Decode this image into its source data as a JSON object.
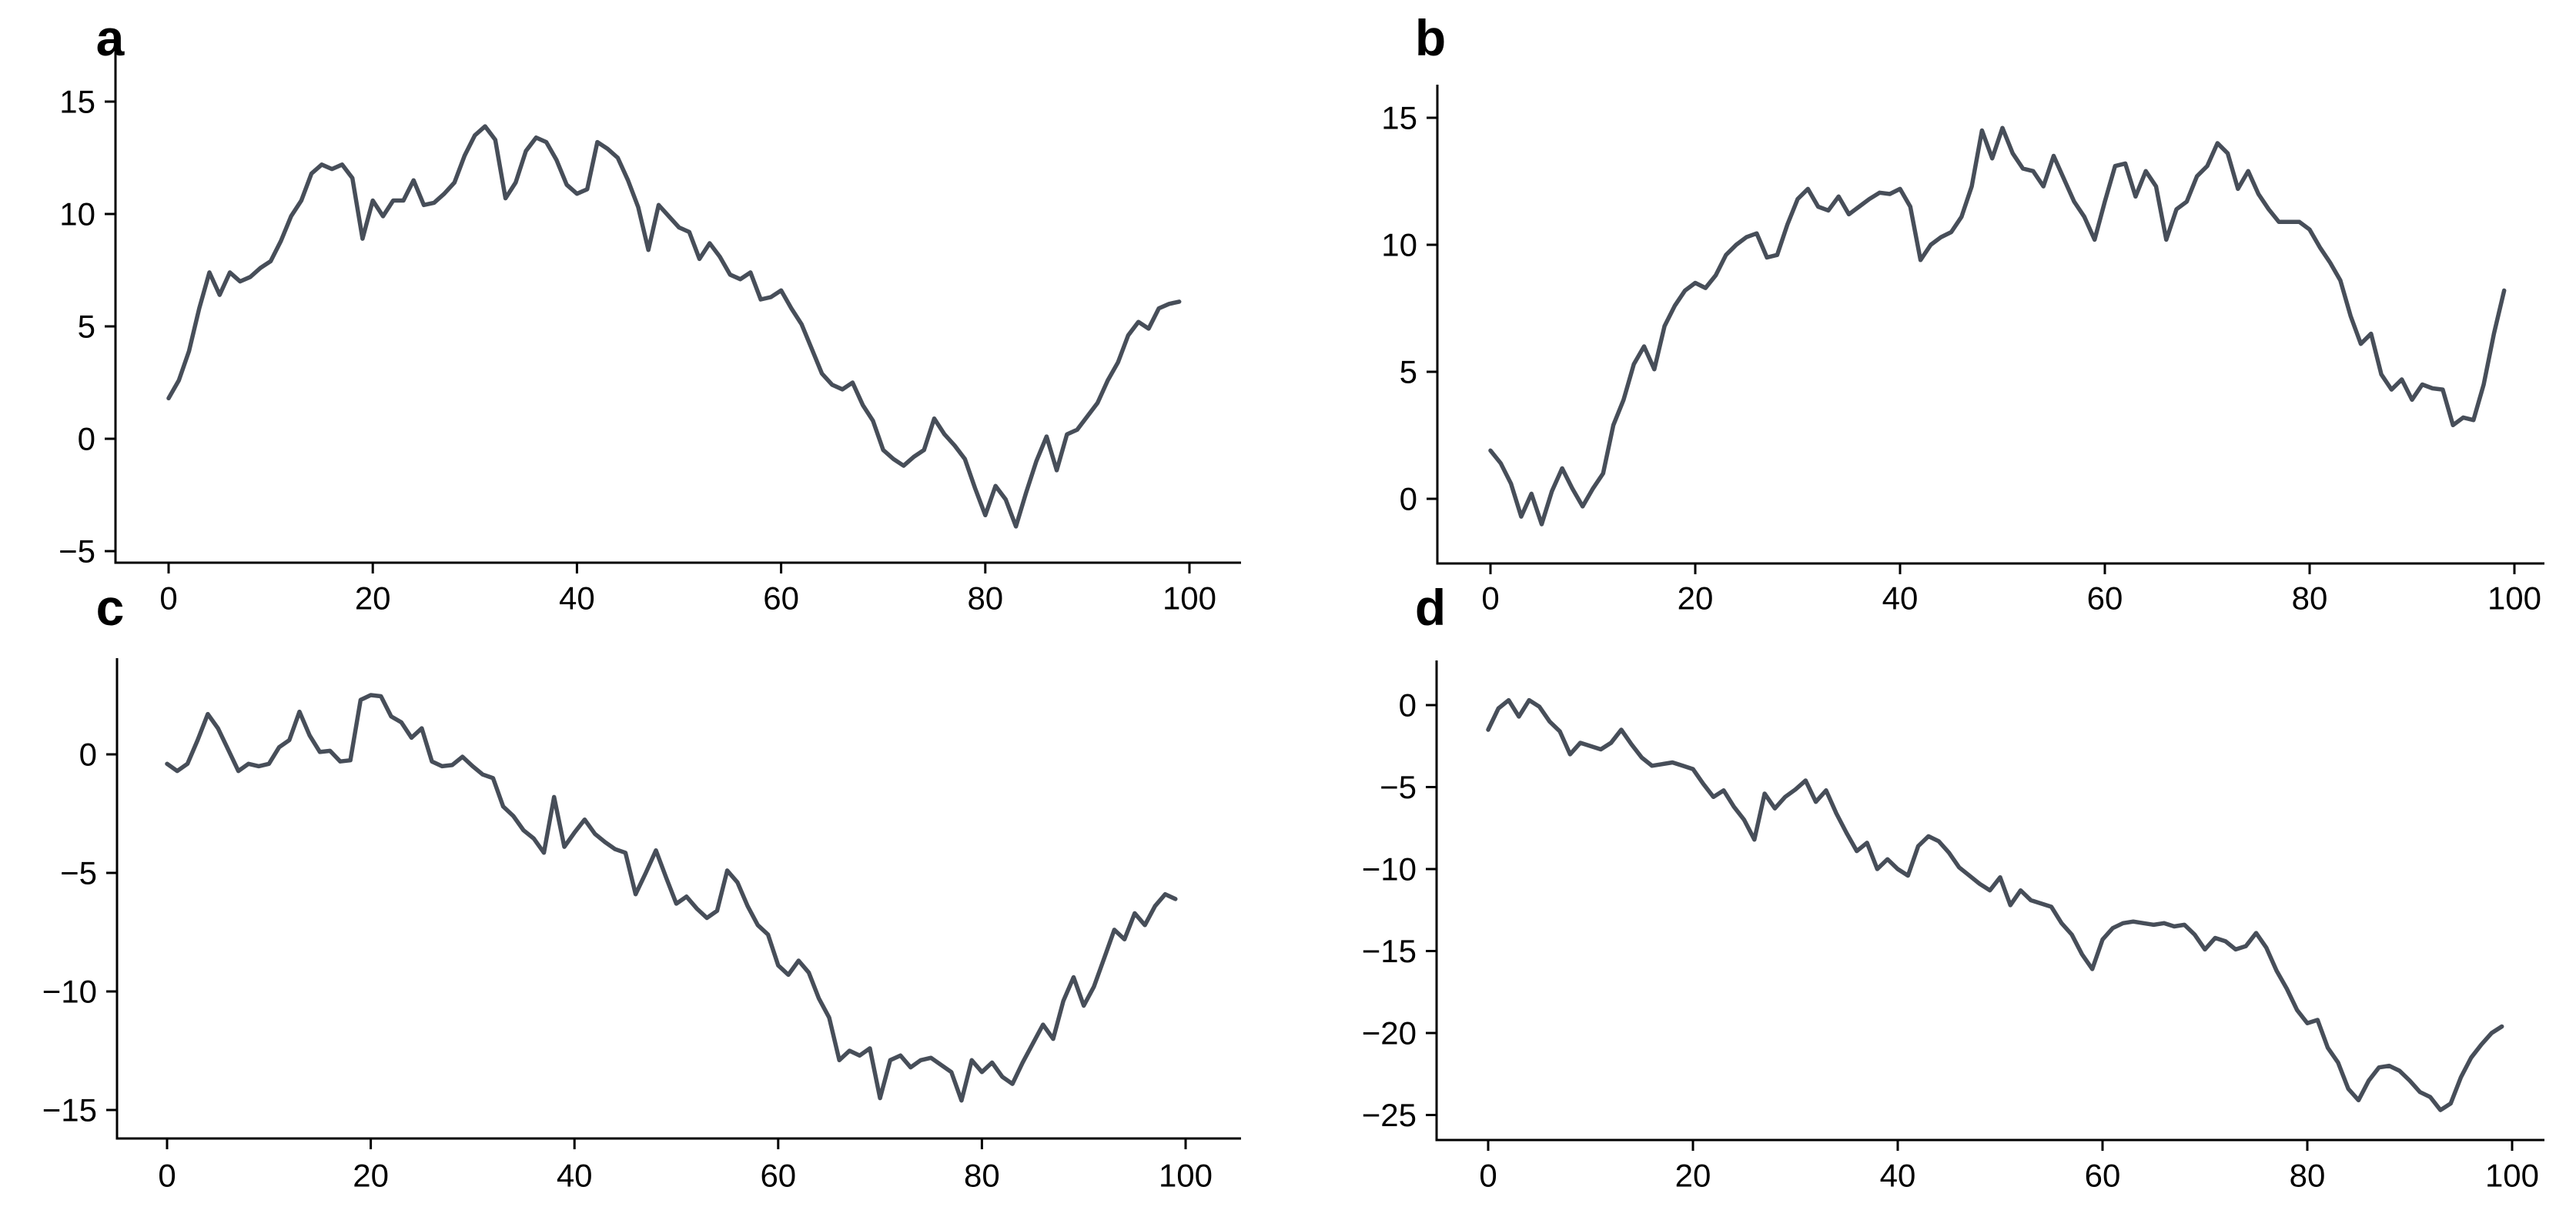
{
  "figure": {
    "background": "#ffffff",
    "line_color": "#474e59",
    "axis_color": "#000000",
    "tick_label_color": "#000000",
    "panel_label_color": "#000000",
    "grid": "off",
    "legend": "none"
  },
  "chart_data": [
    {
      "type": "line",
      "panel_label": "a",
      "title": "",
      "xlabel": "",
      "ylabel": "",
      "x_start": 0,
      "x_step": 1,
      "n_points": 100,
      "xticks": [
        0,
        20,
        40,
        60,
        80,
        100
      ],
      "yticks": [
        -5,
        0,
        5,
        10,
        15
      ],
      "xlim": [
        0,
        100
      ],
      "ylim": [
        -6.5,
        16
      ],
      "values": [
        1.8,
        2.6,
        3.9,
        5.8,
        7.4,
        6.4,
        7.4,
        7.0,
        7.2,
        7.6,
        7.9,
        8.8,
        9.9,
        10.6,
        11.8,
        12.2,
        12.0,
        12.2,
        11.6,
        8.9,
        10.6,
        9.9,
        10.6,
        10.6,
        11.5,
        10.4,
        10.5,
        10.9,
        11.4,
        12.6,
        13.5,
        13.9,
        13.3,
        10.7,
        11.4,
        12.8,
        13.4,
        13.2,
        12.4,
        11.3,
        10.9,
        11.1,
        13.2,
        12.9,
        12.5,
        11.5,
        10.3,
        8.4,
        10.4,
        9.9,
        9.4,
        9.2,
        8.0,
        8.7,
        8.1,
        7.3,
        7.1,
        7.4,
        6.2,
        6.3,
        6.6,
        5.8,
        5.1,
        4.0,
        2.9,
        2.4,
        2.2,
        2.5,
        1.5,
        0.8,
        -0.5,
        -0.9,
        -1.2,
        -0.8,
        -0.5,
        0.9,
        0.2,
        -0.3,
        -0.9,
        -2.2,
        -3.4,
        -2.1,
        -2.7,
        -3.9,
        -2.4,
        -1.0,
        0.1,
        -1.4,
        0.2,
        0.4,
        1.0,
        1.6,
        2.6,
        3.4,
        4.6,
        5.2,
        4.9,
        5.8,
        6.0,
        6.1
      ]
    },
    {
      "type": "line",
      "panel_label": "b",
      "title": "",
      "xlabel": "",
      "ylabel": "",
      "x_start": 0,
      "x_step": 1,
      "n_points": 100,
      "xticks": [
        0,
        20,
        40,
        60,
        80,
        100
      ],
      "yticks": [
        0,
        5,
        10,
        15
      ],
      "xlim": [
        0,
        100
      ],
      "ylim": [
        -2.5,
        16.5
      ],
      "values": [
        1.9,
        1.4,
        0.6,
        -0.7,
        0.2,
        -1.0,
        0.3,
        1.2,
        0.4,
        -0.3,
        0.4,
        1.0,
        2.9,
        3.9,
        5.3,
        6.0,
        5.1,
        6.8,
        7.6,
        8.2,
        8.5,
        8.3,
        8.8,
        9.6,
        10.0,
        10.3,
        10.45,
        9.5,
        9.6,
        10.8,
        11.8,
        12.2,
        11.5,
        11.35,
        11.9,
        11.2,
        11.5,
        11.8,
        12.05,
        12.0,
        12.2,
        11.5,
        9.4,
        10.0,
        10.3,
        10.5,
        11.1,
        12.3,
        14.5,
        13.4,
        14.6,
        13.6,
        13.0,
        12.9,
        12.3,
        13.5,
        12.6,
        11.7,
        11.1,
        10.2,
        11.7,
        13.1,
        13.2,
        11.9,
        12.9,
        12.3,
        10.2,
        11.4,
        11.7,
        12.7,
        13.1,
        14.0,
        13.6,
        12.2,
        12.9,
        12.0,
        11.4,
        10.9,
        10.9,
        10.9,
        10.6,
        9.9,
        9.3,
        8.6,
        7.2,
        6.1,
        6.5,
        4.9,
        4.3,
        4.7,
        3.9,
        4.5,
        4.35,
        4.3,
        2.9,
        3.2,
        3.1,
        4.5,
        6.5,
        8.2
      ]
    },
    {
      "type": "line",
      "panel_label": "c",
      "title": "",
      "xlabel": "",
      "ylabel": "",
      "x_start": 0,
      "x_step": 1,
      "n_points": 100,
      "xticks": [
        0,
        20,
        40,
        60,
        80,
        100
      ],
      "yticks": [
        -15,
        -10,
        -5,
        0
      ],
      "xlim": [
        0,
        100
      ],
      "ylim": [
        -16.5,
        4
      ],
      "values": [
        -0.4,
        -0.7,
        -0.4,
        0.6,
        1.7,
        1.1,
        0.2,
        -0.7,
        -0.4,
        -0.5,
        -0.4,
        0.3,
        0.6,
        1.8,
        0.8,
        0.1,
        0.15,
        -0.3,
        -0.25,
        2.3,
        2.5,
        2.45,
        1.6,
        1.35,
        0.7,
        1.1,
        -0.3,
        -0.5,
        -0.45,
        -0.1,
        -0.5,
        -0.85,
        -1.0,
        -2.2,
        -2.6,
        -3.2,
        -3.55,
        -4.15,
        -1.8,
        -3.9,
        -3.3,
        -2.75,
        -3.35,
        -3.7,
        -4.0,
        -4.15,
        -5.9,
        -5.0,
        -4.05,
        -5.2,
        -6.3,
        -6.0,
        -6.5,
        -6.9,
        -6.6,
        -4.9,
        -5.4,
        -6.4,
        -7.2,
        -7.6,
        -8.9,
        -9.3,
        -8.7,
        -9.2,
        -10.3,
        -11.1,
        -12.9,
        -12.5,
        -12.7,
        -12.4,
        -14.5,
        -12.9,
        -12.7,
        -13.2,
        -12.9,
        -12.8,
        -13.1,
        -13.4,
        -14.6,
        -12.9,
        -13.4,
        -13.0,
        -13.6,
        -13.9,
        -13.0,
        -12.2,
        -11.4,
        -12.0,
        -10.4,
        -9.4,
        -10.6,
        -9.8,
        -8.6,
        -7.4,
        -7.8,
        -6.7,
        -7.2,
        -6.4,
        -5.9,
        -6.1
      ]
    },
    {
      "type": "line",
      "panel_label": "d",
      "title": "",
      "xlabel": "",
      "ylabel": "",
      "x_start": 0,
      "x_step": 1,
      "n_points": 100,
      "xticks": [
        0,
        20,
        40,
        60,
        80,
        100
      ],
      "yticks": [
        -25,
        -20,
        -15,
        -10,
        -5,
        0
      ],
      "xlim": [
        0,
        100
      ],
      "ylim": [
        -26.5,
        2
      ],
      "values": [
        -1.5,
        -0.2,
        0.3,
        -0.7,
        0.3,
        -0.1,
        -1.0,
        -1.6,
        -3.0,
        -2.3,
        -2.5,
        -2.7,
        -2.3,
        -1.5,
        -2.4,
        -3.2,
        -3.7,
        -3.6,
        -3.5,
        -3.7,
        -3.9,
        -4.8,
        -5.6,
        -5.2,
        -6.2,
        -7.0,
        -8.2,
        -5.4,
        -6.3,
        -5.6,
        -5.15,
        -4.6,
        -5.9,
        -5.2,
        -6.6,
        -7.8,
        -8.9,
        -8.4,
        -10.0,
        -9.4,
        -10.0,
        -10.4,
        -8.6,
        -8.0,
        -8.3,
        -9.0,
        -9.9,
        -10.4,
        -10.9,
        -11.3,
        -10.5,
        -12.2,
        -11.3,
        -11.9,
        -12.1,
        -12.3,
        -13.3,
        -14.0,
        -15.2,
        -16.1,
        -14.3,
        -13.6,
        -13.3,
        -13.2,
        -13.3,
        -13.4,
        -13.3,
        -13.5,
        -13.4,
        -14.0,
        -14.9,
        -14.2,
        -14.4,
        -14.9,
        -14.7,
        -13.9,
        -14.8,
        -16.2,
        -17.3,
        -18.6,
        -19.4,
        -19.2,
        -20.9,
        -21.8,
        -23.4,
        -24.1,
        -22.9,
        -22.1,
        -22.0,
        -22.3,
        -22.9,
        -23.6,
        -23.9,
        -24.7,
        -24.3,
        -22.7,
        -21.5,
        -20.7,
        -20.0,
        -19.6
      ]
    }
  ]
}
